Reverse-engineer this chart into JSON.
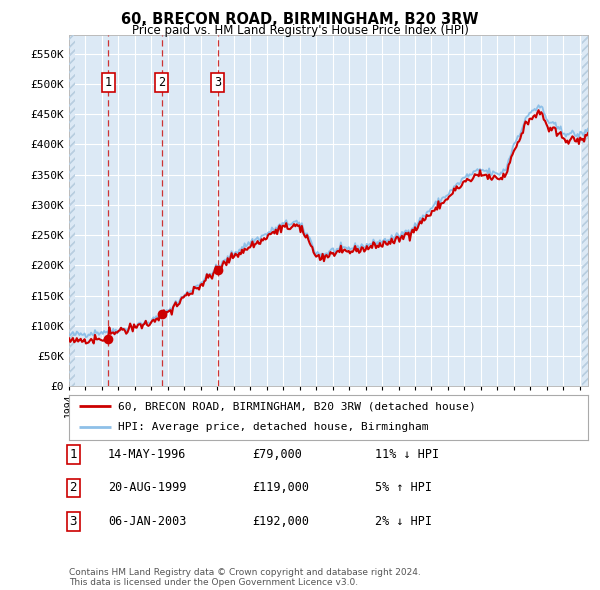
{
  "title": "60, BRECON ROAD, BIRMINGHAM, B20 3RW",
  "subtitle": "Price paid vs. HM Land Registry's House Price Index (HPI)",
  "plot_bg_color": "#dce9f5",
  "hatch_color": "#b8cee0",
  "hpi_line_color": "#8ec0e8",
  "price_line_color": "#cc0000",
  "sale_marker_color": "#cc0000",
  "vline_color": "#cc0000",
  "ylim": [
    0,
    580000
  ],
  "yticks": [
    0,
    50000,
    100000,
    150000,
    200000,
    250000,
    300000,
    350000,
    400000,
    450000,
    500000,
    550000
  ],
  "ytick_labels": [
    "£0",
    "£50K",
    "£100K",
    "£150K",
    "£200K",
    "£250K",
    "£300K",
    "£350K",
    "£400K",
    "£450K",
    "£500K",
    "£550K"
  ],
  "sale_dates": [
    1996.37,
    1999.64,
    2003.02
  ],
  "sale_prices": [
    79000,
    119000,
    192000
  ],
  "sale_labels": [
    "1",
    "2",
    "3"
  ],
  "legend_line1": "60, BRECON ROAD, BIRMINGHAM, B20 3RW (detached house)",
  "legend_line2": "HPI: Average price, detached house, Birmingham",
  "table_data": [
    [
      "1",
      "14-MAY-1996",
      "£79,000",
      "11% ↓ HPI"
    ],
    [
      "2",
      "20-AUG-1999",
      "£119,000",
      "5% ↑ HPI"
    ],
    [
      "3",
      "06-JAN-2003",
      "£192,000",
      "2% ↓ HPI"
    ]
  ],
  "footnote": "Contains HM Land Registry data © Crown copyright and database right 2024.\nThis data is licensed under the Open Government Licence v3.0.",
  "xstart": 1994.0,
  "xend": 2025.5
}
